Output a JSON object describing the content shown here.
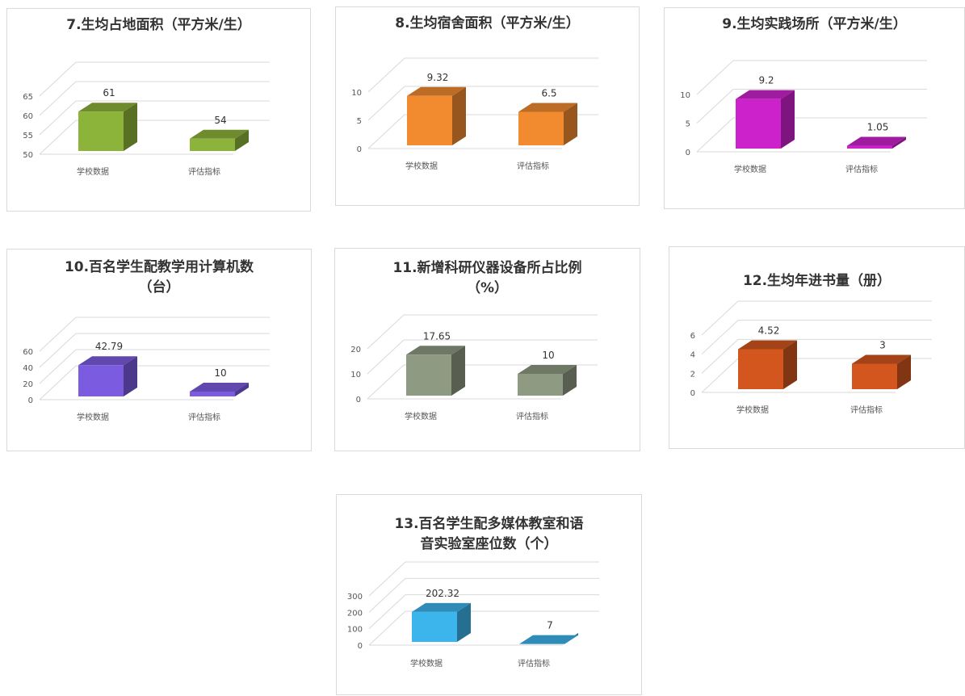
{
  "chart_data": [
    {
      "type": "bar",
      "title": "7.生均占地面积（平方米/生）",
      "categories": [
        "学校数据",
        "评估指标"
      ],
      "values": [
        61,
        54
      ],
      "value_labels": [
        "61",
        "54"
      ],
      "yticks": [
        50,
        55,
        60,
        65
      ],
      "ylim": [
        50,
        70
      ],
      "bar_3d": true,
      "color": "#8DB43A"
    },
    {
      "type": "bar",
      "title": "8.生均宿舍面积（平方米/生）",
      "categories": [
        "学校数据",
        "评估指标"
      ],
      "values": [
        9.32,
        6.5
      ],
      "value_labels": [
        "9.32",
        "6.5"
      ],
      "yticks": [
        0,
        5,
        10
      ],
      "ylim": [
        0,
        15
      ],
      "bar_3d": true,
      "color": "#F28A30"
    },
    {
      "type": "bar",
      "title": "9.生均实践场所（平方米/生）",
      "categories": [
        "学校数据",
        "评估指标"
      ],
      "values": [
        9.2,
        1.05
      ],
      "value_labels": [
        "9.2",
        "1.05"
      ],
      "yticks": [
        0,
        5,
        10
      ],
      "ylim": [
        0,
        15
      ],
      "bar_3d": true,
      "color": "#CC22CC"
    },
    {
      "type": "bar",
      "title": "10.百名学生配教学用计算机数\n（台）",
      "categories": [
        "学校数据",
        "评估指标"
      ],
      "values": [
        42.79,
        10
      ],
      "value_labels": [
        "42.79",
        "10"
      ],
      "yticks": [
        0,
        20,
        40,
        60
      ],
      "ylim": [
        0,
        80
      ],
      "bar_3d": true,
      "color": "#7B5CE0"
    },
    {
      "type": "bar",
      "title": "11.新增科研仪器设备所占比例\n（%）",
      "categories": [
        "学校数据",
        "评估指标"
      ],
      "values": [
        17.65,
        10
      ],
      "value_labels": [
        "17.65",
        "10"
      ],
      "yticks": [
        0,
        10,
        20
      ],
      "ylim": [
        0,
        30
      ],
      "bar_3d": true,
      "color": "#8E9A82"
    },
    {
      "type": "bar",
      "title": "12.生均年进书量（册）",
      "categories": [
        "学校数据",
        "评估指标"
      ],
      "values": [
        4.52,
        3
      ],
      "value_labels": [
        "4.52",
        "3"
      ],
      "yticks": [
        0,
        2,
        4,
        6
      ],
      "ylim": [
        0,
        8
      ],
      "bar_3d": true,
      "color": "#D2561E"
    },
    {
      "type": "bar",
      "title": "13.百名学生配多媒体教室和语\n音实验室座位数（个）",
      "categories": [
        "学校数据",
        "评估指标"
      ],
      "values": [
        202.32,
        7
      ],
      "value_labels": [
        "202.32",
        "7"
      ],
      "yticks": [
        0,
        100,
        200,
        300
      ],
      "ylim": [
        0,
        400
      ],
      "bar_3d": true,
      "color": "#3CB4EC"
    }
  ]
}
